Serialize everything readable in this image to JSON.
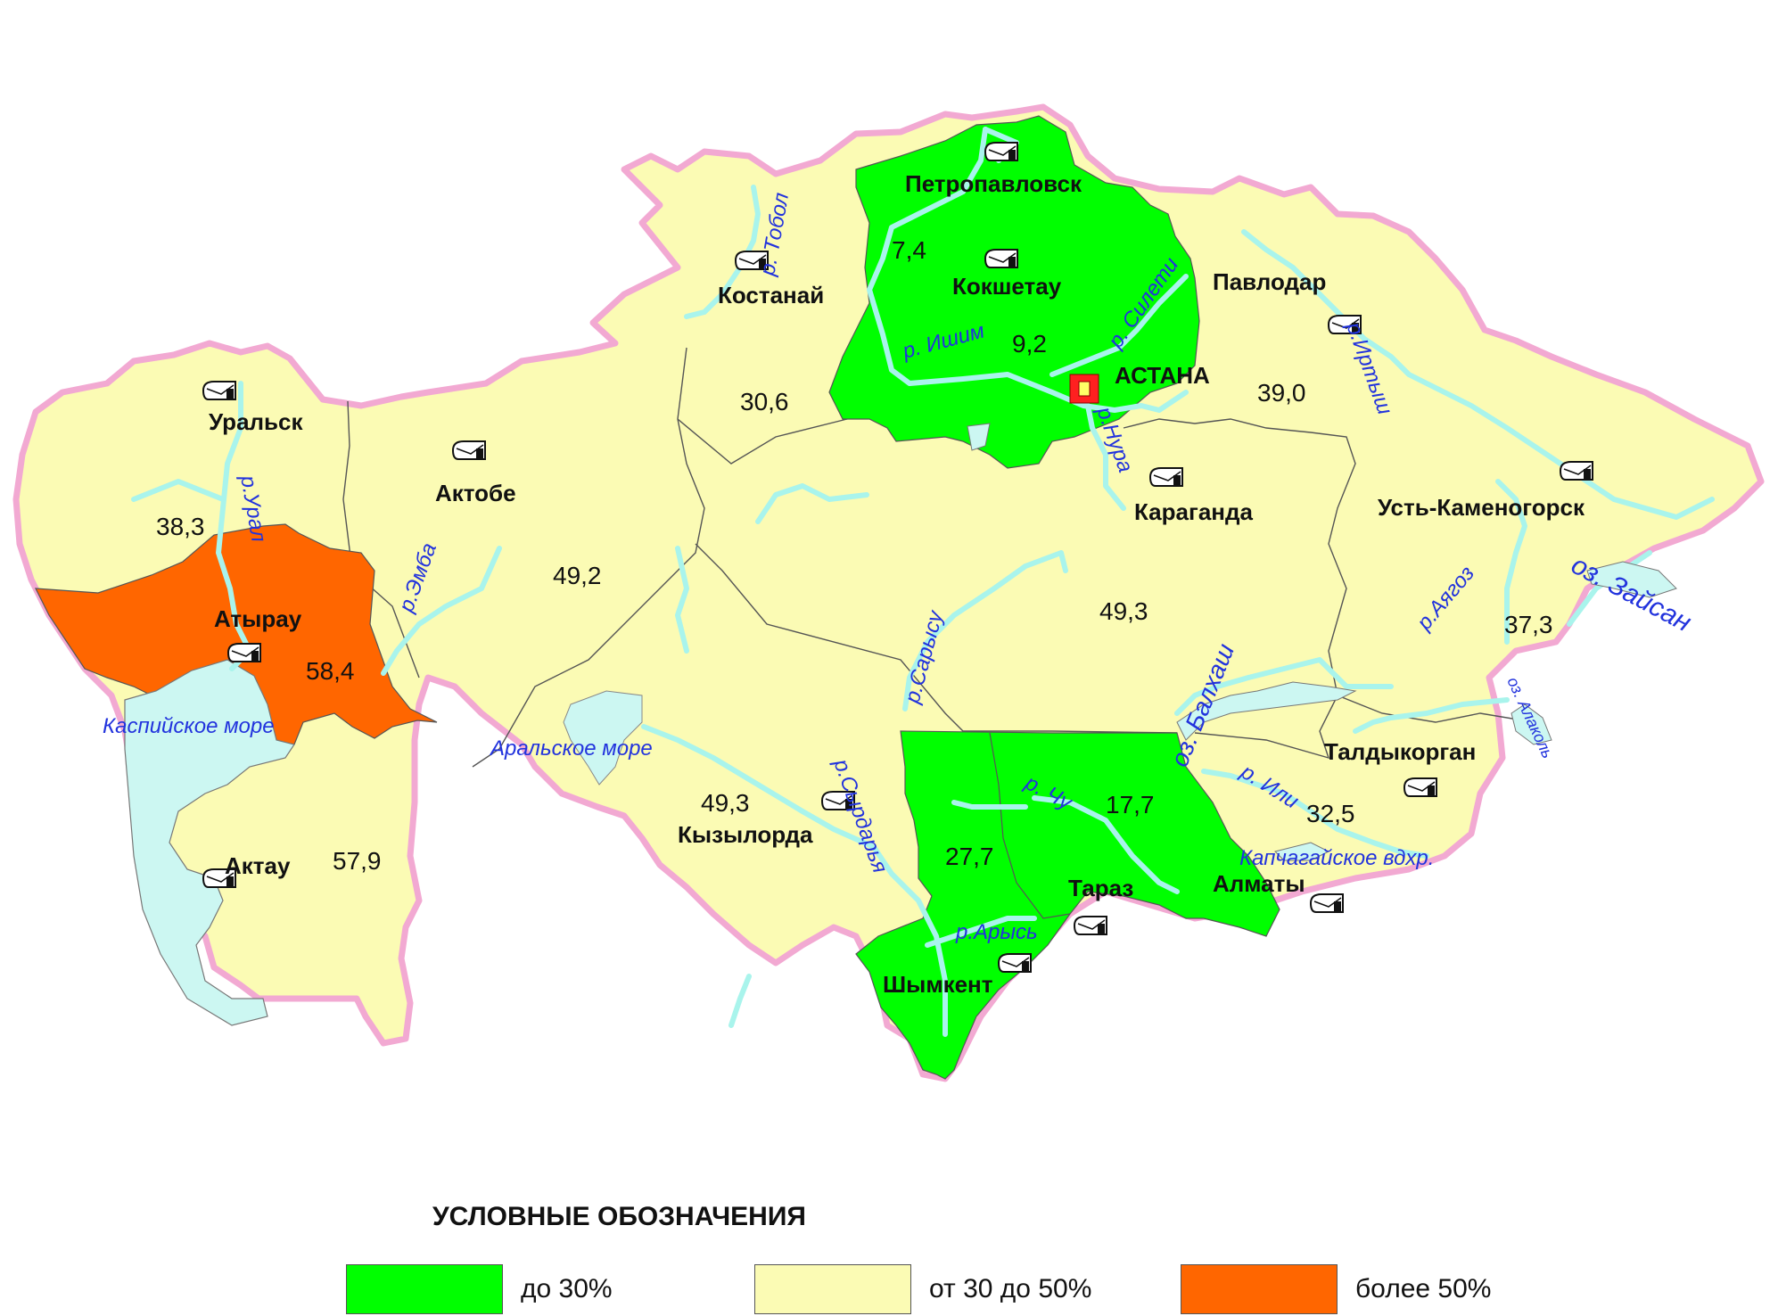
{
  "colors": {
    "low": "#00ff00",
    "mid": "#fbfbb4",
    "high": "#ff6600",
    "sea": "#ccf7f2",
    "river": "#a9f4ec",
    "border": "#f2a9d2",
    "water_text": "#2233dd"
  },
  "map": {
    "regions": [
      {
        "city": "Петропавловск",
        "value": ""
      },
      {
        "city": "Кокшетау",
        "value": "7,4"
      },
      {
        "city": "АСТАНА",
        "value": "9,2"
      },
      {
        "city": "Костанай",
        "value": "30,6"
      },
      {
        "city": "Павлодар",
        "value": "39,0"
      },
      {
        "city": "Уральск",
        "value": "38,3"
      },
      {
        "city": "Актобе",
        "value": "49,2"
      },
      {
        "city": "Атырау",
        "value": "58,4"
      },
      {
        "city": "Актау",
        "value": "57,9"
      },
      {
        "city": "Караганда",
        "value": "49,3"
      },
      {
        "city": "Усть-Каменогорск",
        "value": "37,3"
      },
      {
        "city": "Кызылорда",
        "value": "49,3"
      },
      {
        "city": "Талдыкорган",
        "value": "32,5"
      },
      {
        "city": "Тараз",
        "value": "17,7"
      },
      {
        "city": "Шымкент",
        "value": "27,7"
      },
      {
        "city": "Алматы",
        "value": ""
      }
    ],
    "water_labels": [
      "р. Тобол",
      "р. Ишим",
      "р. Силети",
      "р.Иртыш",
      "р.Нура",
      "р.Урал",
      "р.Эмба",
      "Каспийское море",
      "Аральское море",
      "р.Сарысу",
      "р.Сырдарья",
      "р. Чу",
      "р.Арысь",
      "оз. Балхаш",
      "р. Или",
      "Капчагайское вдхр.",
      "р.Аягоз",
      "оз. Зайсан",
      "оз. Алаколь"
    ],
    "icon": "post-office-icon",
    "capital_icon": "capital-marker-icon"
  },
  "legend": {
    "title": "УСЛОВНЫЕ ОБОЗНАЧЕНИЯ",
    "items": [
      {
        "label": "до 30%",
        "color": "#00ff00"
      },
      {
        "label": "от 30 до 50%",
        "color": "#fbfbb4"
      },
      {
        "label": "более 50%",
        "color": "#ff6600"
      }
    ]
  }
}
